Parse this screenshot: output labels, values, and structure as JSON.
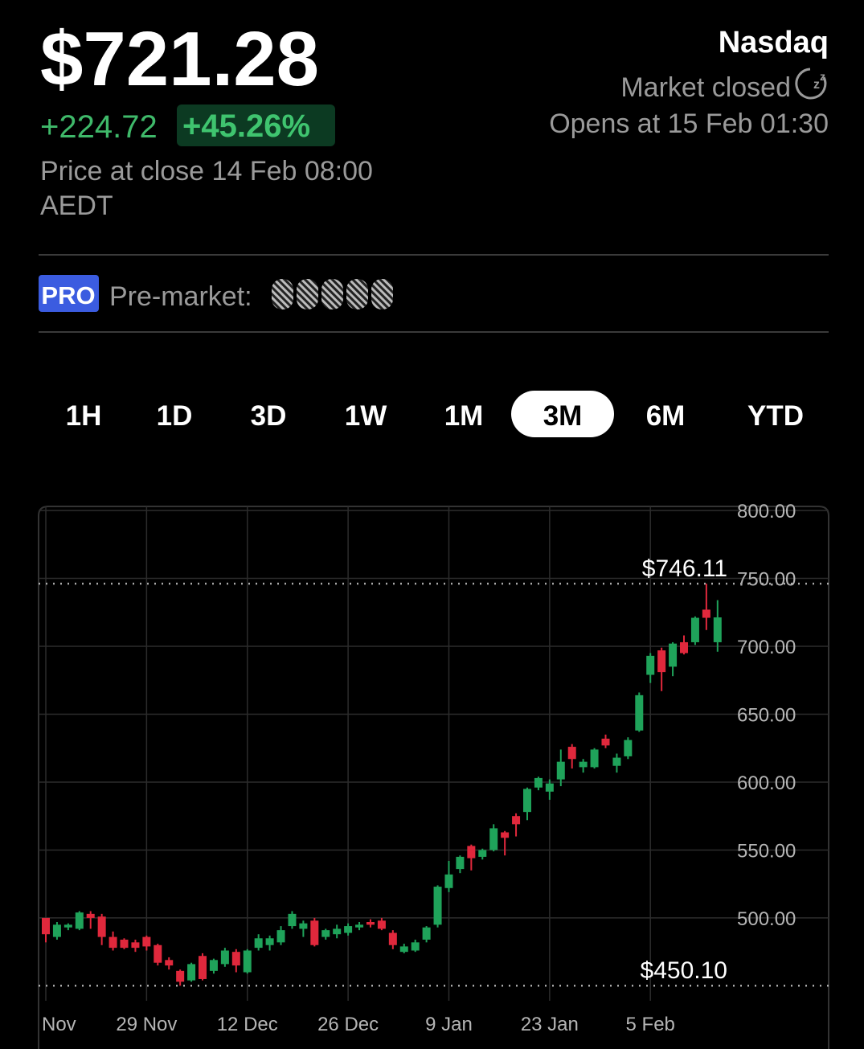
{
  "header": {
    "price": "$721.28",
    "change": "+224.72",
    "change_percent": "+45.26%",
    "close_info": "Price at close 14 Feb 08:00 AEDT",
    "exchange": "Nasdaq",
    "status": "Market closed",
    "opens": "Opens at 15 Feb 01:30"
  },
  "premarket": {
    "badge": "PRO",
    "label": "Pre-market:"
  },
  "timeframes": {
    "items": [
      "1H",
      "1D",
      "3D",
      "1W",
      "1M",
      "3M",
      "6M",
      "YTD"
    ],
    "selected_index": 5
  },
  "chart_data": {
    "type": "candlestick",
    "categories": [
      "Nov",
      null,
      null,
      null,
      null,
      null,
      null,
      null,
      null,
      "29 Nov",
      null,
      null,
      null,
      null,
      null,
      null,
      null,
      null,
      "12 Dec",
      null,
      null,
      null,
      null,
      null,
      null,
      null,
      null,
      "26 Dec",
      null,
      null,
      null,
      null,
      null,
      null,
      null,
      null,
      "9 Jan",
      null,
      null,
      null,
      null,
      null,
      null,
      null,
      null,
      "23 Jan",
      null,
      null,
      null,
      null,
      null,
      null,
      null,
      null,
      "5 Feb",
      null,
      null,
      null,
      null,
      null,
      null
    ],
    "open": [
      500,
      486,
      493,
      492,
      503,
      501,
      486,
      484,
      482,
      486,
      480,
      469,
      461,
      454,
      472,
      461,
      466,
      475,
      460,
      478,
      480,
      482,
      494,
      492,
      498,
      486,
      488,
      489,
      493,
      497,
      498,
      489,
      475,
      476,
      484,
      495,
      522,
      536,
      553,
      545,
      550,
      563,
      575,
      578,
      596,
      593,
      602,
      626,
      611,
      611,
      632,
      612,
      619,
      638,
      679,
      697,
      685,
      703,
      703,
      727,
      703
    ],
    "high": [
      500,
      497,
      496,
      505,
      505,
      503,
      490,
      485,
      484,
      487,
      481,
      471,
      462,
      467,
      474,
      470,
      478,
      477,
      477,
      488,
      487,
      494,
      505,
      498,
      500,
      492,
      495,
      496,
      497,
      499,
      500,
      491,
      481,
      484,
      494,
      524,
      542,
      546,
      554,
      551,
      569,
      564,
      577,
      596,
      604,
      602,
      624,
      628,
      617,
      625,
      635,
      621,
      633,
      666,
      695,
      699,
      703,
      708,
      722,
      746.11,
      734
    ],
    "low": [
      482,
      484,
      491,
      491,
      492,
      480,
      476,
      477,
      475,
      476,
      465,
      462,
      450.1,
      453,
      454,
      459,
      464,
      460,
      459,
      476,
      476,
      480,
      492,
      486,
      479,
      484,
      485,
      487,
      491,
      493,
      491,
      477,
      474,
      475,
      482,
      493,
      519,
      533,
      535,
      543,
      549,
      546,
      560,
      572,
      594,
      587,
      597,
      610,
      607,
      610,
      625,
      607,
      617,
      637,
      673,
      667,
      678,
      694,
      701,
      712,
      696
    ],
    "close": [
      488,
      495,
      495,
      504,
      500,
      486,
      478,
      478,
      478,
      479,
      467,
      465,
      453,
      466,
      455,
      469,
      476,
      465,
      476,
      485,
      485,
      491,
      503,
      496,
      480,
      491,
      492,
      494,
      495,
      495,
      492,
      480,
      479,
      482,
      493,
      523,
      532,
      545,
      544,
      550,
      566,
      559,
      569,
      595,
      603,
      599,
      615,
      617,
      615,
      624,
      627,
      618,
      631,
      664,
      693,
      681,
      702,
      695,
      721,
      721,
      721.28
    ],
    "up_color": "#1fa35a",
    "down_color": "#e0283c",
    "ylim": [
      439,
      803
    ],
    "yticks": [
      {
        "value": 500,
        "label": "500.00"
      },
      {
        "value": 550,
        "label": "550.00"
      },
      {
        "value": 600,
        "label": "600.00"
      },
      {
        "value": 650,
        "label": "650.00"
      },
      {
        "value": 700,
        "label": "700.00"
      },
      {
        "value": 750,
        "label": "750.00"
      },
      {
        "value": 800,
        "label": "800.00"
      }
    ],
    "grid": true,
    "price_markers": [
      {
        "value": 746.11,
        "label": "$746.11"
      },
      {
        "value": 450.1,
        "label": "$450.10"
      }
    ]
  }
}
